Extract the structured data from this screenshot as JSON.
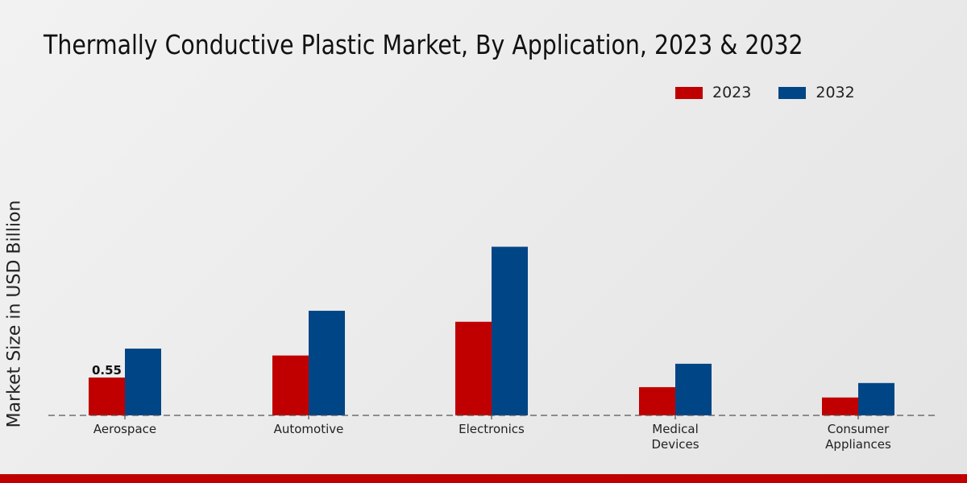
{
  "chart_data": {
    "type": "bar",
    "title": "Thermally Conductive Plastic Market, By Application, 2023 & 2032",
    "xlabel": "",
    "ylabel": "Market Size in USD Billion",
    "categories": [
      "Aerospace",
      "Automotive",
      "Electronics",
      "Medical Devices",
      "Consumer Appliances"
    ],
    "category_lines": [
      [
        "Aerospace"
      ],
      [
        "Automotive"
      ],
      [
        "Electronics"
      ],
      [
        "Medical",
        "Devices"
      ],
      [
        "Consumer",
        "Appliances"
      ]
    ],
    "series": [
      {
        "name": "2023",
        "color": "#c00000",
        "values": [
          0.55,
          0.87,
          1.36,
          0.41,
          0.26
        ]
      },
      {
        "name": "2032",
        "color": "#004586",
        "values": [
          0.97,
          1.52,
          2.45,
          0.75,
          0.47
        ]
      }
    ],
    "data_labels": [
      {
        "series": "2023",
        "category": "Aerospace",
        "text": "0.55"
      }
    ],
    "legend_position": "top-right",
    "grid": false
  }
}
